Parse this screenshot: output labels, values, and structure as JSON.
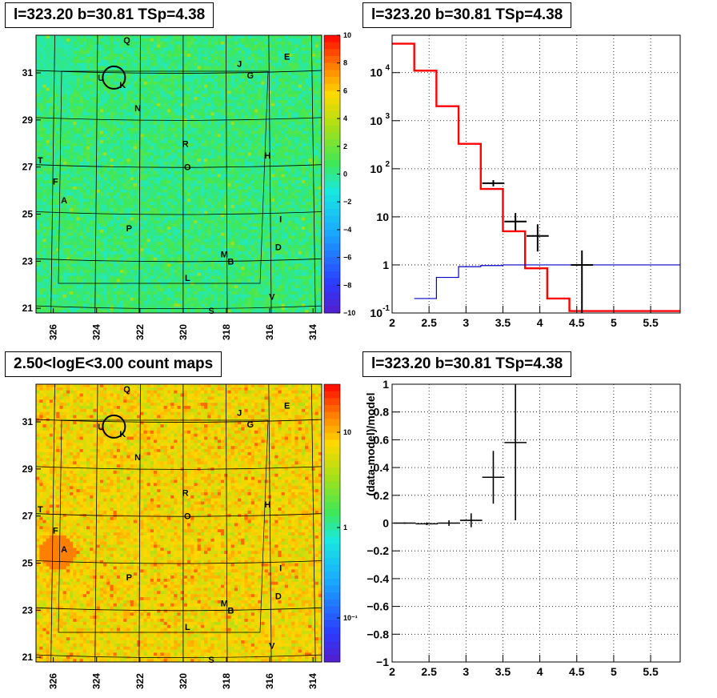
{
  "panels": {
    "top_left": {
      "title": "l=323.20 b=30.81 TSp=4.38"
    },
    "top_right": {
      "title": "l=323.20 b=30.81 TSp=4.38"
    },
    "bottom_left": {
      "title": "2.50<logE<3.00 count maps"
    },
    "bottom_right": {
      "title": "l=323.20 b=30.81 TSp=4.38"
    }
  },
  "sky_labels": {
    "x_ticks": [
      "326",
      "324",
      "322",
      "320",
      "318",
      "316",
      "314"
    ],
    "y_ticks": [
      "31",
      "29",
      "27",
      "25",
      "23",
      "21"
    ],
    "sources": [
      "Q",
      "E",
      "J",
      "G",
      "U",
      "K",
      "N",
      "R",
      "H",
      "T",
      "O",
      "F",
      "A",
      "I",
      "P",
      "D",
      "M",
      "B",
      "L",
      "V",
      "S"
    ]
  },
  "colors": {
    "model_red": "#ff0000",
    "background_blue": "#0000cc",
    "data_black": "#000000",
    "residual_map_green": "#33dd55",
    "count_map_orange": "#f0a030"
  },
  "chart_data": [
    {
      "type": "heatmap",
      "panel": "top_left",
      "title": "l=323.20 b=30.81 TSp=4.38",
      "xlim": [
        326.8,
        313.6
      ],
      "ylim": [
        20.8,
        32.6
      ],
      "x_ticks": [
        326,
        324,
        322,
        320,
        318,
        316,
        314
      ],
      "y_ticks": [
        31,
        29,
        27,
        25,
        23,
        21
      ],
      "colorbar": {
        "min": -10,
        "max": 10,
        "ticks": [
          "10",
          "8",
          "6",
          "4",
          "2",
          "0",
          "−2",
          "−4",
          "−6",
          "−8",
          "−10"
        ]
      },
      "typical_value": 0.5
    },
    {
      "type": "line",
      "panel": "top_right",
      "title": "l=323.20 b=30.81 TSp=4.38",
      "xlim": [
        2,
        5.9
      ],
      "ylim": [
        0.1,
        60000
      ],
      "yscale": "log",
      "grid": true,
      "x_ticks": [
        "2",
        "2.5",
        "3",
        "3.5",
        "4",
        "4.5",
        "5",
        "5.5"
      ],
      "y_ticks": [
        {
          "v": 0.1,
          "label": "10",
          "exp": "-1"
        },
        {
          "v": 1,
          "label": "1",
          "exp": ""
        },
        {
          "v": 10,
          "label": "10",
          "exp": ""
        },
        {
          "v": 100,
          "label": "10",
          "exp": "2"
        },
        {
          "v": 1000,
          "label": "10",
          "exp": "3"
        },
        {
          "v": 10000,
          "label": "10",
          "exp": "4"
        }
      ],
      "series": [
        {
          "style": "step",
          "color": "#ff0000",
          "edges": [
            2,
            2.3,
            2.6,
            2.9,
            3.2,
            3.5,
            3.8,
            4.1,
            4.4,
            5.9
          ],
          "values": [
            40000,
            11000,
            2000,
            330,
            38,
            5,
            0.85,
            0.2,
            0.11
          ]
        },
        {
          "style": "step",
          "color": "#0000cc",
          "edges": [
            2.3,
            2.6,
            2.9,
            3.2,
            3.5,
            5.9
          ],
          "values": [
            0.2,
            0.55,
            0.92,
            0.97,
            1.0
          ]
        },
        {
          "style": "errorbar",
          "color": "#000000",
          "points": [
            {
              "x": 3.37,
              "y": 50,
              "xerr": 0.15,
              "ylo": 43,
              "yhi": 58
            },
            {
              "x": 3.67,
              "y": 8,
              "xerr": 0.15,
              "ylo": 5.2,
              "yhi": 12
            },
            {
              "x": 3.97,
              "y": 4,
              "xerr": 0.15,
              "ylo": 1.9,
              "yhi": 7
            },
            {
              "x": 4.57,
              "y": 1,
              "xerr": 0.15,
              "ylo": 0.1,
              "yhi": 2
            }
          ]
        }
      ]
    },
    {
      "type": "heatmap",
      "panel": "bottom_left",
      "title": "2.50<logE<3.00 count maps",
      "xlim": [
        326.8,
        313.6
      ],
      "ylim": [
        20.8,
        32.6
      ],
      "x_ticks": [
        326,
        324,
        322,
        320,
        318,
        316,
        314
      ],
      "y_ticks": [
        31,
        29,
        27,
        25,
        23,
        21
      ],
      "colorbar": {
        "scale": "log",
        "ticks": [
          "10",
          "1",
          "10⁻¹"
        ]
      },
      "typical_value": 2
    },
    {
      "type": "scatter",
      "panel": "bottom_right",
      "title": "l=323.20 b=30.81 TSp=4.38",
      "ylabel": "(data-model)/model",
      "xlim": [
        2,
        5.9
      ],
      "ylim": [
        -1,
        1
      ],
      "grid": true,
      "x_ticks": [
        "2",
        "2.5",
        "3",
        "3.5",
        "4",
        "4.5",
        "5",
        "5.5"
      ],
      "y_ticks": [
        "1",
        "0.8",
        "0.6",
        "0.4",
        "0.2",
        "0",
        "−0.2",
        "−0.4",
        "−0.6",
        "−0.8",
        "−1"
      ],
      "points": [
        {
          "x": 2.17,
          "y": 0.0,
          "xerr": 0.15,
          "yerr": 0.005
        },
        {
          "x": 2.47,
          "y": -0.005,
          "xerr": 0.15,
          "yerr": 0.01
        },
        {
          "x": 2.77,
          "y": 0.0,
          "xerr": 0.15,
          "yerr": 0.02
        },
        {
          "x": 3.07,
          "y": 0.02,
          "xerr": 0.15,
          "yerr": 0.05
        },
        {
          "x": 3.37,
          "y": 0.33,
          "xerr": 0.15,
          "yerr": 0.19
        },
        {
          "x": 3.67,
          "y": 0.58,
          "xerr": 0.15,
          "yerr": 0.56
        }
      ]
    }
  ]
}
